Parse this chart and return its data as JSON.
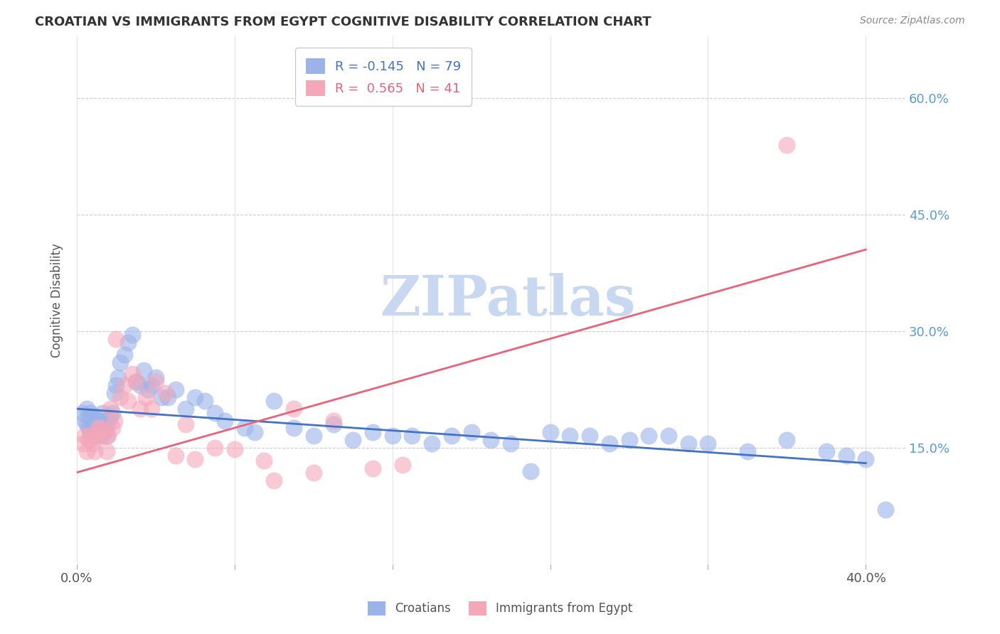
{
  "title": "CROATIAN VS IMMIGRANTS FROM EGYPT COGNITIVE DISABILITY CORRELATION CHART",
  "source": "Source: ZipAtlas.com",
  "ylabel": "Cognitive Disability",
  "xlim": [
    0.0,
    0.42
  ],
  "ylim": [
    0.0,
    0.68
  ],
  "yticks": [
    0.15,
    0.3,
    0.45,
    0.6
  ],
  "ytick_labels": [
    "15.0%",
    "30.0%",
    "45.0%",
    "60.0%"
  ],
  "xticks": [
    0.0,
    0.08,
    0.16,
    0.24,
    0.32,
    0.4
  ],
  "croatian_R": -0.145,
  "croatian_N": 79,
  "egypt_R": 0.565,
  "egypt_N": 41,
  "croatian_color": "#9ab3e8",
  "egypt_color": "#f4a7b9",
  "line_croatian_color": "#4472c4",
  "line_egypt_color": "#e8627a",
  "watermark": "ZIPatlas",
  "watermark_color": "#c8d8f0",
  "croatian_x": [
    0.003,
    0.004,
    0.005,
    0.005,
    0.006,
    0.006,
    0.007,
    0.007,
    0.008,
    0.008,
    0.009,
    0.009,
    0.01,
    0.01,
    0.011,
    0.011,
    0.012,
    0.012,
    0.013,
    0.013,
    0.014,
    0.014,
    0.015,
    0.015,
    0.016,
    0.017,
    0.018,
    0.019,
    0.02,
    0.021,
    0.022,
    0.024,
    0.026,
    0.028,
    0.03,
    0.032,
    0.034,
    0.036,
    0.038,
    0.04,
    0.043,
    0.046,
    0.05,
    0.055,
    0.06,
    0.065,
    0.07,
    0.075,
    0.085,
    0.09,
    0.1,
    0.11,
    0.12,
    0.13,
    0.14,
    0.15,
    0.16,
    0.17,
    0.18,
    0.19,
    0.2,
    0.21,
    0.22,
    0.23,
    0.24,
    0.25,
    0.26,
    0.27,
    0.28,
    0.29,
    0.3,
    0.31,
    0.32,
    0.34,
    0.36,
    0.38,
    0.39,
    0.4,
    0.41
  ],
  "croatian_y": [
    0.195,
    0.185,
    0.18,
    0.2,
    0.175,
    0.19,
    0.17,
    0.195,
    0.165,
    0.185,
    0.175,
    0.19,
    0.17,
    0.185,
    0.175,
    0.185,
    0.165,
    0.18,
    0.18,
    0.195,
    0.175,
    0.185,
    0.165,
    0.175,
    0.185,
    0.19,
    0.195,
    0.22,
    0.23,
    0.24,
    0.26,
    0.27,
    0.285,
    0.295,
    0.235,
    0.23,
    0.25,
    0.225,
    0.23,
    0.24,
    0.215,
    0.215,
    0.225,
    0.2,
    0.215,
    0.21,
    0.195,
    0.185,
    0.175,
    0.17,
    0.21,
    0.175,
    0.165,
    0.18,
    0.16,
    0.17,
    0.165,
    0.165,
    0.155,
    0.165,
    0.17,
    0.16,
    0.155,
    0.12,
    0.17,
    0.165,
    0.165,
    0.155,
    0.16,
    0.165,
    0.165,
    0.155,
    0.155,
    0.145,
    0.16,
    0.145,
    0.14,
    0.135,
    0.07
  ],
  "egypt_x": [
    0.003,
    0.004,
    0.005,
    0.006,
    0.007,
    0.008,
    0.009,
    0.01,
    0.011,
    0.012,
    0.013,
    0.014,
    0.015,
    0.016,
    0.017,
    0.018,
    0.019,
    0.02,
    0.022,
    0.024,
    0.026,
    0.028,
    0.03,
    0.032,
    0.035,
    0.038,
    0.04,
    0.045,
    0.05,
    0.055,
    0.06,
    0.07,
    0.08,
    0.095,
    0.1,
    0.11,
    0.12,
    0.13,
    0.15,
    0.165,
    0.36
  ],
  "egypt_y": [
    0.155,
    0.165,
    0.145,
    0.16,
    0.165,
    0.155,
    0.145,
    0.165,
    0.175,
    0.175,
    0.165,
    0.17,
    0.145,
    0.165,
    0.2,
    0.175,
    0.185,
    0.29,
    0.215,
    0.23,
    0.21,
    0.245,
    0.235,
    0.2,
    0.215,
    0.2,
    0.235,
    0.22,
    0.14,
    0.18,
    0.135,
    0.15,
    0.148,
    0.133,
    0.108,
    0.2,
    0.118,
    0.185,
    0.123,
    0.128,
    0.54
  ]
}
